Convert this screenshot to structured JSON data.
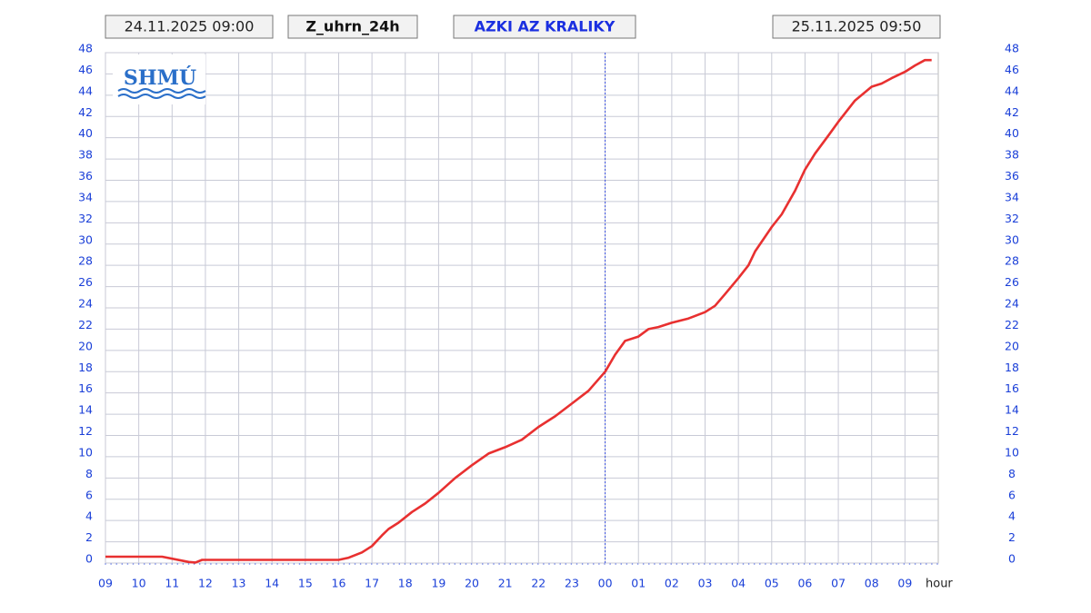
{
  "chart_data": {
    "type": "line",
    "start_time": "24.11.2025 09:00",
    "title": "Z_uhrn_24h",
    "station": "AZKI AZ KRALIKY",
    "end_time": "25.11.2025 09:50",
    "logo": "SHMÚ",
    "x_label": "hour",
    "x": [
      0,
      1.7,
      2.5,
      2.7,
      2.9,
      7.0,
      7.3,
      7.7,
      8.0,
      8.3,
      8.5,
      8.8,
      9.2,
      9.6,
      10.0,
      10.5,
      11.0,
      11.5,
      12.0,
      12.5,
      13.0,
      13.5,
      14.0,
      14.5,
      15.0,
      15.3,
      15.6,
      16.0,
      16.3,
      16.6,
      17.0,
      17.5,
      18.0,
      18.3,
      18.6,
      19.0,
      19.3,
      19.5,
      20.0,
      20.3,
      20.7,
      21.0,
      21.3,
      21.7,
      22.0,
      22.5,
      23.0,
      23.3,
      23.6,
      24.0,
      24.3,
      24.6,
      24.8
    ],
    "series": [
      {
        "name": "Z_uhrn_24h",
        "color": "#e83030",
        "values": [
          0.6,
          0.6,
          0.1,
          0.05,
          0.3,
          0.3,
          0.5,
          1.0,
          1.6,
          2.6,
          3.2,
          3.8,
          4.8,
          5.6,
          6.6,
          8.0,
          9.2,
          10.3,
          10.9,
          11.6,
          12.8,
          13.8,
          15.0,
          16.2,
          18.0,
          19.6,
          20.9,
          21.3,
          22.0,
          22.2,
          22.6,
          23.0,
          23.6,
          24.2,
          25.3,
          26.8,
          28.0,
          29.3,
          31.6,
          32.8,
          35.0,
          37.0,
          38.5,
          40.2,
          41.5,
          43.5,
          44.8,
          45.1,
          45.6,
          46.2,
          46.8,
          47.3,
          47.3
        ]
      }
    ],
    "xlim": [
      0,
      25
    ],
    "xticks": [
      {
        "value": 0,
        "label": "09"
      },
      {
        "value": 1,
        "label": "10"
      },
      {
        "value": 2,
        "label": "11"
      },
      {
        "value": 3,
        "label": "12"
      },
      {
        "value": 4,
        "label": "13"
      },
      {
        "value": 5,
        "label": "14"
      },
      {
        "value": 6,
        "label": "15"
      },
      {
        "value": 7,
        "label": "16"
      },
      {
        "value": 8,
        "label": "17"
      },
      {
        "value": 9,
        "label": "18"
      },
      {
        "value": 10,
        "label": "19"
      },
      {
        "value": 11,
        "label": "20"
      },
      {
        "value": 12,
        "label": "21"
      },
      {
        "value": 13,
        "label": "22"
      },
      {
        "value": 14,
        "label": "23"
      },
      {
        "value": 15,
        "label": "00"
      },
      {
        "value": 16,
        "label": "01"
      },
      {
        "value": 17,
        "label": "02"
      },
      {
        "value": 18,
        "label": "03"
      },
      {
        "value": 19,
        "label": "04"
      },
      {
        "value": 20,
        "label": "05"
      },
      {
        "value": 21,
        "label": "06"
      },
      {
        "value": 22,
        "label": "07"
      },
      {
        "value": 23,
        "label": "08"
      },
      {
        "value": 24,
        "label": "09"
      }
    ],
    "ylim": [
      0,
      48
    ],
    "yticks": [
      0,
      2,
      4,
      6,
      8,
      10,
      12,
      14,
      16,
      18,
      20,
      22,
      24,
      26,
      28,
      30,
      32,
      34,
      36,
      38,
      40,
      42,
      44,
      46,
      48
    ],
    "y2lim": [
      0,
      48
    ],
    "y2ticks": [
      0,
      2,
      4,
      6,
      8,
      10,
      12,
      14,
      16,
      18,
      20,
      22,
      24,
      26,
      28,
      30,
      32,
      34,
      36,
      38,
      40,
      42,
      44,
      46,
      48
    ],
    "grid": true
  }
}
